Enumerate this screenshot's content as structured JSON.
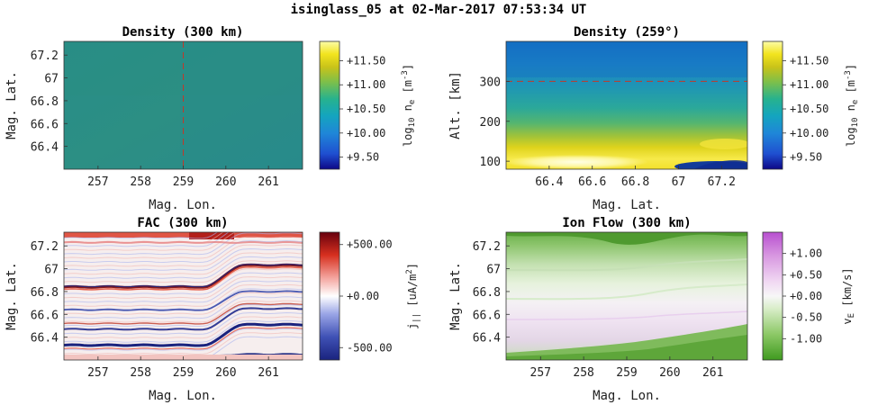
{
  "figure_title": "isinglass_05 at 02-Mar-2017 07:53:34 UT",
  "chart_data": [
    {
      "type": "heatmap",
      "title": "Density (300 km)",
      "xlabel": "Mag. Lon.",
      "ylabel": "Mag. Lat.",
      "xlim": [
        256.2,
        261.8
      ],
      "ylim": [
        66.2,
        67.32
      ],
      "xticks": [
        257,
        258,
        259,
        260,
        261
      ],
      "xtick_labels": [
        "257",
        "258",
        "259",
        "260",
        "261"
      ],
      "yticks": [
        66.4,
        66.6,
        66.8,
        67.0,
        67.2
      ],
      "ytick_labels": [
        "66.4",
        "66.6",
        "66.8",
        "67",
        "67.2"
      ],
      "colormap": "parula",
      "cmap_colors": [
        "#0d0887",
        "#1f4fd0",
        "#1f86d8",
        "#14a5be",
        "#27b28e",
        "#7cbf4b",
        "#c9c319",
        "#f2e41e",
        "#fcfca8"
      ],
      "clim": [
        9.25,
        11.9
      ],
      "colorbar_ticks": [
        9.5,
        10.0,
        10.5,
        11.0,
        11.5
      ],
      "colorbar_tick_labels": [
        "+9.50",
        "+10.00",
        "+10.50",
        "+11.00",
        "+11.50"
      ],
      "colorbar_label_main": "log",
      "colorbar_label_sub": "10",
      "colorbar_label_tail": " n",
      "colorbar_label_sub2": "e",
      "colorbar_label_units": " [m",
      "colorbar_label_sup": "-3",
      "colorbar_label_end": "]",
      "reference_line": {
        "orientation": "vertical",
        "value": 259.0,
        "color": "#c0392b"
      }
    },
    {
      "type": "heatmap",
      "title": "Density (259°)",
      "xlabel": "Mag. Lat.",
      "ylabel": "Alt. [km]",
      "xlim": [
        66.2,
        67.32
      ],
      "ylim": [
        80,
        400
      ],
      "xticks": [
        66.4,
        66.6,
        66.8,
        67.0,
        67.2
      ],
      "xtick_labels": [
        "66.4",
        "66.6",
        "66.8",
        "67",
        "67.2"
      ],
      "yticks": [
        100,
        200,
        300
      ],
      "ytick_labels": [
        "100",
        "200",
        "300"
      ],
      "colormap": "parula",
      "clim": [
        9.25,
        11.9
      ],
      "colorbar_ticks": [
        9.5,
        10.0,
        10.5,
        11.0,
        11.5
      ],
      "colorbar_tick_labels": [
        "+9.50",
        "+10.00",
        "+10.50",
        "+11.00",
        "+11.50"
      ],
      "colorbar_label_main": "log",
      "colorbar_label_sub": "10",
      "colorbar_label_tail": " n",
      "colorbar_label_sub2": "e",
      "colorbar_label_units": " [m",
      "colorbar_label_sup": "-3",
      "colorbar_label_end": "]",
      "reference_line": {
        "orientation": "horizontal",
        "value": 300,
        "color": "#c0392b"
      }
    },
    {
      "type": "heatmap",
      "title": "FAC (300 km)",
      "xlabel": "Mag. Lon.",
      "ylabel": "Mag. Lat.",
      "xlim": [
        256.2,
        261.8
      ],
      "ylim": [
        66.2,
        67.32
      ],
      "xticks": [
        257,
        258,
        259,
        260,
        261
      ],
      "xtick_labels": [
        "257",
        "258",
        "259",
        "260",
        "261"
      ],
      "yticks": [
        66.4,
        66.6,
        66.8,
        67.0,
        67.2
      ],
      "ytick_labels": [
        "66.4",
        "66.6",
        "66.8",
        "67",
        "67.2"
      ],
      "colormap": "diverging blue-white-red",
      "cmap_colors": [
        "#1a237e",
        "#3f51b5",
        "#9aa5e6",
        "#ffffff",
        "#f4a6a0",
        "#d7301f",
        "#67000d"
      ],
      "clim": [
        -620,
        620
      ],
      "colorbar_ticks": [
        -500,
        0,
        500
      ],
      "colorbar_tick_labels": [
        "-500.00",
        "+0.00",
        "+500.00"
      ],
      "colorbar_label_main": "j",
      "colorbar_label_sub": "||",
      "colorbar_label_units": "  [uA/m",
      "colorbar_label_sup": "2",
      "colorbar_label_end": "]"
    },
    {
      "type": "heatmap",
      "title": "Ion Flow (300 km)",
      "xlabel": "Mag. Lon.",
      "ylabel": "Mag. Lat.",
      "xlim": [
        256.2,
        261.8
      ],
      "ylim": [
        66.2,
        67.32
      ],
      "xticks": [
        257,
        258,
        259,
        260,
        261
      ],
      "xtick_labels": [
        "257",
        "258",
        "259",
        "260",
        "261"
      ],
      "yticks": [
        66.4,
        66.6,
        66.8,
        67.0,
        67.2
      ],
      "ytick_labels": [
        "66.4",
        "66.6",
        "66.8",
        "67",
        "67.2"
      ],
      "colormap": "diverging green-white-magenta",
      "cmap_colors": [
        "#3f9a1f",
        "#8cc866",
        "#d8edc8",
        "#f7f7f7",
        "#f0d6f2",
        "#d796e0",
        "#b84fd0"
      ],
      "clim": [
        -1.5,
        1.5
      ],
      "colorbar_ticks": [
        -1.0,
        -0.5,
        0.0,
        0.5,
        1.0
      ],
      "colorbar_tick_labels": [
        "-1.00",
        "-0.50",
        "+0.00",
        "+0.50",
        "+1.00"
      ],
      "colorbar_label_main": "v",
      "colorbar_label_sub": "E",
      "colorbar_label_units": " [km/s]"
    }
  ]
}
